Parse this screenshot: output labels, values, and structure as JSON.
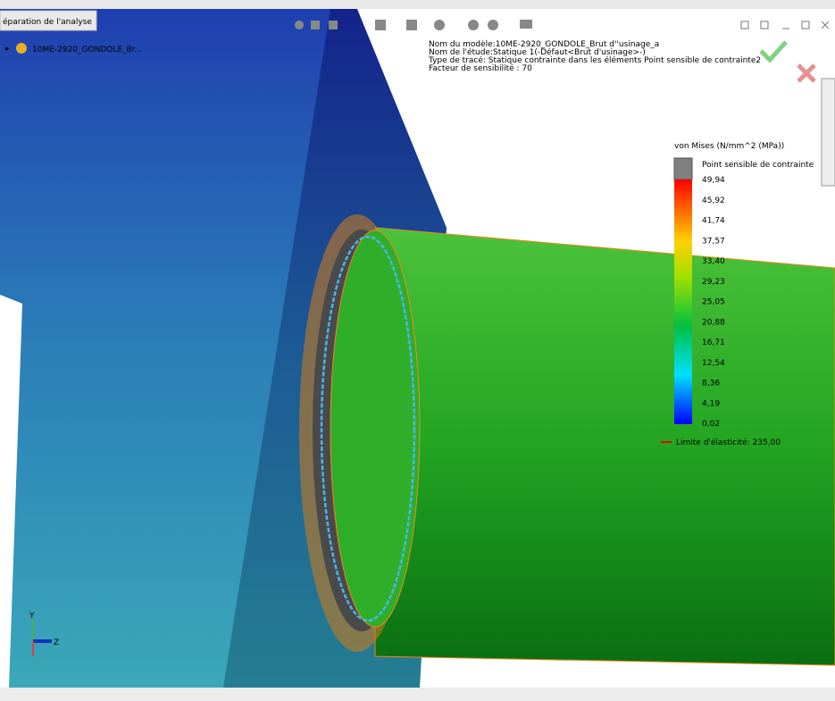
{
  "tab": {
    "title": "éparation de l'analyse"
  },
  "tree": {
    "item": "10ME-2920_GONDOLE_Br..."
  },
  "info": {
    "lines": [
      "Nom du modèle:10ME-2920_GONDOLE_Brut d''usinage_a",
      "Nom de l'étude:Statique 1(-Défaut<Brut d'usinage>-)",
      "Type de tracé: Statique contrainte dans les éléments Point sensible de contrainte2",
      "Facteur de sensibilité : 70"
    ]
  },
  "legend": {
    "title": "von Mises (N/mm^2 (MPa))",
    "hotspot": "Point sensible de contrainte",
    "labels": [
      "49,94",
      "45,92",
      "41,74",
      "37,57",
      "33,40",
      "29,23",
      "25,05",
      "20,88",
      "16,71",
      "12,54",
      "8,36",
      "4,19",
      "0,02"
    ],
    "yield": "Limite d'élasticité: 235,00"
  },
  "triad": {
    "y": "Y",
    "z": "Z"
  }
}
